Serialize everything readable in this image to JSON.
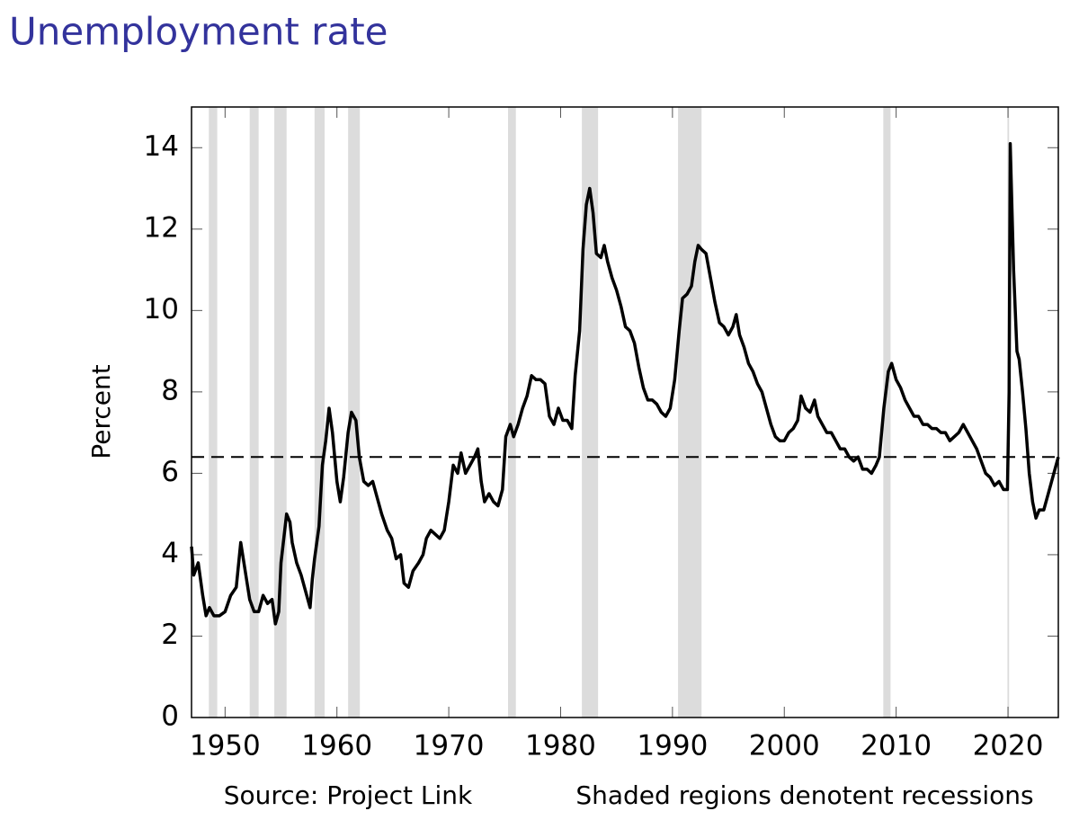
{
  "chart_data": {
    "type": "line",
    "title": "Unemployment rate",
    "y_label": "Percent",
    "notes": [
      "Source: Project Link",
      "Shaded regions denotent recessions"
    ],
    "color": "#000000",
    "title_color": "#33339c",
    "recession_color": "#dcdcdc",
    "reference_line": 6.4,
    "xlim": [
      1947,
      2024.5
    ],
    "ylim": [
      0,
      15
    ],
    "xticks": [
      1950,
      1960,
      1970,
      1980,
      1990,
      2000,
      2010,
      2020
    ],
    "yticks": [
      0,
      2,
      4,
      6,
      8,
      10,
      12,
      14
    ],
    "recessions": [
      [
        1948.55,
        1949.3
      ],
      [
        1952.2,
        1953.0
      ],
      [
        1954.4,
        1955.5
      ],
      [
        1958.0,
        1958.9
      ],
      [
        1961.0,
        1962.05
      ],
      [
        1975.3,
        1976.0
      ],
      [
        1981.9,
        1983.35
      ],
      [
        1990.5,
        1992.6
      ],
      [
        2008.85,
        2009.5
      ],
      [
        2019.95,
        2020.1
      ]
    ],
    "x": [
      1947.0,
      1947.2,
      1947.6,
      1948.0,
      1948.3,
      1948.6,
      1949.0,
      1949.5,
      1950.0,
      1950.5,
      1951.0,
      1951.4,
      1951.8,
      1952.2,
      1952.6,
      1953.0,
      1953.4,
      1953.8,
      1954.2,
      1954.5,
      1954.8,
      1955.0,
      1955.5,
      1955.8,
      1956.0,
      1956.4,
      1956.8,
      1957.2,
      1957.6,
      1957.8,
      1958.0,
      1958.4,
      1958.7,
      1959.0,
      1959.3,
      1959.6,
      1960.0,
      1960.3,
      1960.6,
      1961.0,
      1961.3,
      1961.7,
      1962.0,
      1962.4,
      1962.8,
      1963.2,
      1963.6,
      1964.0,
      1964.5,
      1964.9,
      1965.3,
      1965.7,
      1966.0,
      1966.4,
      1966.8,
      1967.3,
      1967.7,
      1968.0,
      1968.4,
      1968.8,
      1969.2,
      1969.6,
      1970.0,
      1970.4,
      1970.8,
      1971.1,
      1971.5,
      1971.9,
      1972.3,
      1972.6,
      1972.9,
      1973.2,
      1973.6,
      1974.0,
      1974.4,
      1974.8,
      1975.1,
      1975.5,
      1975.8,
      1976.2,
      1976.6,
      1977.0,
      1977.4,
      1977.8,
      1978.2,
      1978.6,
      1979.0,
      1979.4,
      1979.8,
      1980.2,
      1980.6,
      1981.0,
      1981.3,
      1981.7,
      1982.0,
      1982.3,
      1982.6,
      1982.9,
      1983.2,
      1983.6,
      1983.9,
      1984.2,
      1984.6,
      1985.0,
      1985.4,
      1985.8,
      1986.2,
      1986.6,
      1987.0,
      1987.4,
      1987.8,
      1988.2,
      1988.6,
      1989.0,
      1989.4,
      1989.8,
      1990.2,
      1990.6,
      1990.9,
      1991.3,
      1991.7,
      1992.0,
      1992.3,
      1992.6,
      1993.0,
      1993.4,
      1993.8,
      1994.2,
      1994.6,
      1995.0,
      1995.4,
      1995.7,
      1996.0,
      1996.4,
      1996.8,
      1997.2,
      1997.6,
      1998.0,
      1998.4,
      1998.8,
      1999.2,
      1999.6,
      2000.0,
      2000.4,
      2000.8,
      2001.2,
      2001.5,
      2001.9,
      2002.3,
      2002.7,
      2003.0,
      2003.4,
      2003.8,
      2004.2,
      2004.6,
      2005.0,
      2005.4,
      2005.8,
      2006.2,
      2006.6,
      2007.0,
      2007.4,
      2007.8,
      2008.2,
      2008.5,
      2008.9,
      2009.3,
      2009.6,
      2010.0,
      2010.4,
      2010.8,
      2011.2,
      2011.6,
      2012.0,
      2012.4,
      2012.8,
      2013.2,
      2013.6,
      2014.0,
      2014.4,
      2014.8,
      2015.2,
      2015.6,
      2016.0,
      2016.4,
      2016.8,
      2017.2,
      2017.6,
      2018.0,
      2018.4,
      2018.8,
      2019.2,
      2019.6,
      2019.95,
      2020.1,
      2020.2,
      2020.5,
      2020.8,
      2021.0,
      2021.3,
      2021.6,
      2021.9,
      2022.2,
      2022.5,
      2022.8,
      2023.2,
      2023.6,
      2023.9,
      2024.2,
      2024.5
    ],
    "values": [
      4.2,
      3.5,
      3.8,
      3.0,
      2.5,
      2.7,
      2.5,
      2.5,
      2.6,
      3.0,
      3.2,
      4.3,
      3.6,
      2.9,
      2.6,
      2.6,
      3.0,
      2.8,
      2.9,
      2.3,
      2.6,
      3.8,
      5.0,
      4.8,
      4.3,
      3.8,
      3.5,
      3.1,
      2.7,
      3.4,
      3.9,
      4.7,
      6.2,
      6.8,
      7.6,
      7.0,
      5.8,
      5.3,
      5.9,
      7.0,
      7.5,
      7.3,
      6.4,
      5.8,
      5.7,
      5.8,
      5.4,
      5.0,
      4.6,
      4.4,
      3.9,
      4.0,
      3.3,
      3.2,
      3.6,
      3.8,
      4.0,
      4.4,
      4.6,
      4.5,
      4.4,
      4.6,
      5.3,
      6.2,
      6.0,
      6.5,
      6.0,
      6.2,
      6.4,
      6.6,
      5.8,
      5.3,
      5.5,
      5.3,
      5.2,
      5.6,
      6.9,
      7.2,
      6.9,
      7.2,
      7.6,
      7.9,
      8.4,
      8.3,
      8.3,
      8.2,
      7.4,
      7.2,
      7.6,
      7.3,
      7.3,
      7.1,
      8.4,
      9.5,
      11.5,
      12.6,
      13.0,
      12.4,
      11.4,
      11.3,
      11.6,
      11.2,
      10.8,
      10.5,
      10.1,
      9.6,
      9.5,
      9.2,
      8.6,
      8.1,
      7.8,
      7.8,
      7.7,
      7.5,
      7.4,
      7.6,
      8.3,
      9.5,
      10.3,
      10.4,
      10.6,
      11.2,
      11.6,
      11.5,
      11.4,
      10.8,
      10.2,
      9.7,
      9.6,
      9.4,
      9.6,
      9.9,
      9.4,
      9.1,
      8.7,
      8.5,
      8.2,
      8.0,
      7.6,
      7.2,
      6.9,
      6.8,
      6.8,
      7.0,
      7.1,
      7.3,
      7.9,
      7.6,
      7.5,
      7.8,
      7.4,
      7.2,
      7.0,
      7.0,
      6.8,
      6.6,
      6.6,
      6.4,
      6.3,
      6.4,
      6.1,
      6.1,
      6.0,
      6.2,
      6.4,
      7.6,
      8.5,
      8.7,
      8.3,
      8.1,
      7.8,
      7.6,
      7.4,
      7.4,
      7.2,
      7.2,
      7.1,
      7.1,
      7.0,
      7.0,
      6.8,
      6.9,
      7.0,
      7.2,
      7.0,
      6.8,
      6.6,
      6.3,
      6.0,
      5.9,
      5.7,
      5.8,
      5.6,
      5.6,
      8.0,
      14.1,
      11.0,
      9.0,
      8.8,
      8.0,
      7.1,
      6.0,
      5.3,
      4.9,
      5.1,
      5.1,
      5.5,
      5.8,
      6.1,
      6.4
    ]
  }
}
